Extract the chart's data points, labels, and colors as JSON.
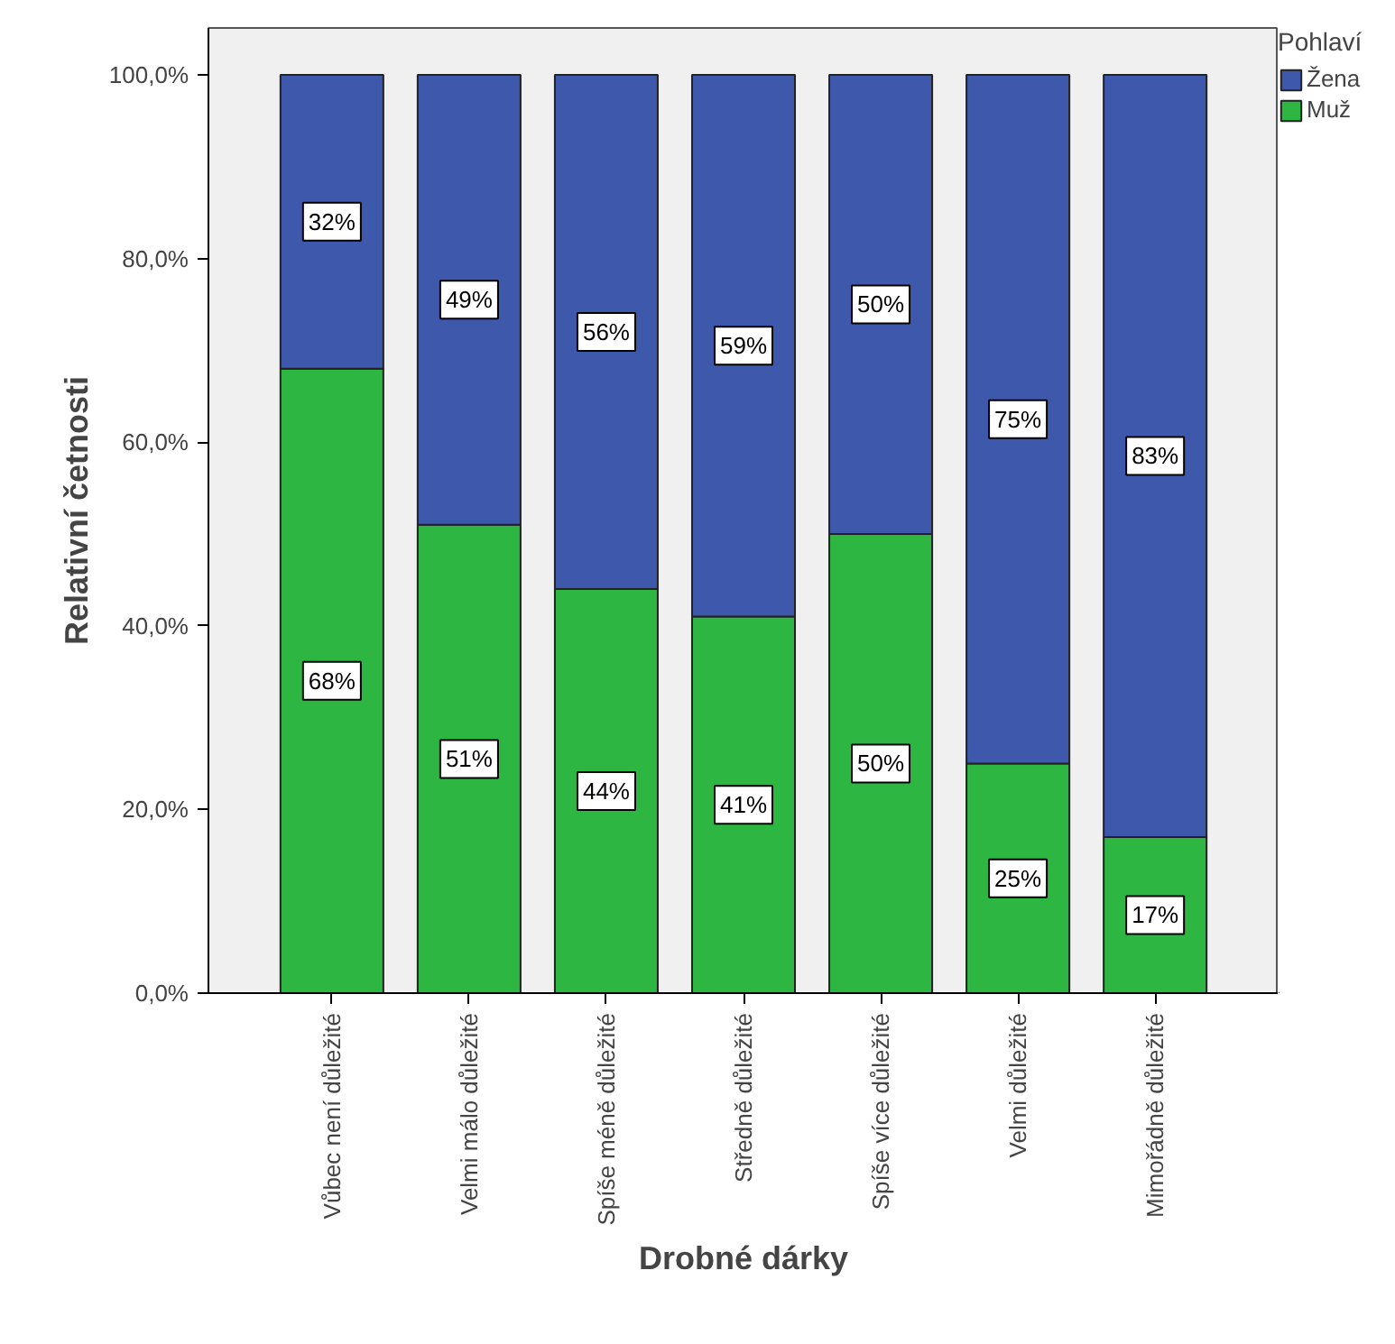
{
  "chart_data": {
    "type": "bar",
    "stacked": true,
    "xlabel": "Drobné dárky",
    "ylabel": "Relativní četnosti",
    "legend_title": "Pohlaví",
    "legend": "top right",
    "grid": false,
    "categories": [
      "Vůbec není důležité",
      "Velmi málo důležité",
      "Spíše méně důležité",
      "Středně důležité",
      "Spíše více důležité",
      "Velmi důležité",
      "Mimořádně důležité"
    ],
    "series": [
      {
        "name": "Muž",
        "color": "#2db742",
        "values": [
          68,
          51,
          44,
          41,
          50,
          25,
          17
        ],
        "value_labels": [
          "68%",
          "51%",
          "44%",
          "41%",
          "50%",
          "25%",
          "17%"
        ]
      },
      {
        "name": "Žena",
        "color": "#3e58ac",
        "values": [
          32,
          49,
          56,
          59,
          50,
          75,
          83
        ],
        "value_labels": [
          "32%",
          "49%",
          "56%",
          "59%",
          "50%",
          "75%",
          "83%"
        ]
      }
    ],
    "ylim": [
      0,
      105.1
    ],
    "yticks": [
      {
        "value": 0,
        "label": "0,0%"
      },
      {
        "value": 20,
        "label": "20,0%"
      },
      {
        "value": 40,
        "label": "40,0%"
      },
      {
        "value": 60,
        "label": "60,0%"
      },
      {
        "value": 80,
        "label": "80,0%"
      },
      {
        "value": 100,
        "label": "100,0%"
      }
    ]
  }
}
